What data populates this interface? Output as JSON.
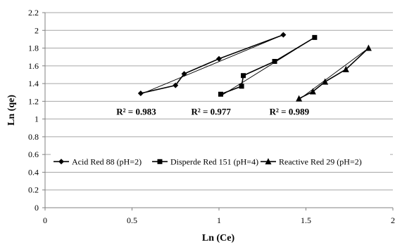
{
  "chart_data": {
    "type": "line",
    "title": "",
    "xlabel": "Ln (Ce)",
    "ylabel": "Ln (qe)",
    "xlim": [
      0,
      2
    ],
    "ylim": [
      0,
      2.2
    ],
    "x_ticks": [
      "0",
      "0.5",
      "1",
      "1.5",
      "2"
    ],
    "y_ticks": [
      "0",
      "0.2",
      "0.4",
      "0.6",
      "0.8",
      "1",
      "1.2",
      "1.4",
      "1.6",
      "1.8",
      "2",
      "2.2"
    ],
    "grid": "horizontal",
    "legend_position": "inside-middle",
    "series": [
      {
        "name": "Acid Red 88 (pH=2)",
        "marker": "diamond",
        "color": "#000000",
        "x": [
          0.55,
          0.75,
          0.8,
          1.0,
          1.37
        ],
        "y": [
          1.29,
          1.38,
          1.51,
          1.68,
          1.95
        ],
        "fit": [
          [
            0.55,
            1.28
          ],
          [
            1.37,
            1.95
          ]
        ],
        "r2_label": "R² = 0.983"
      },
      {
        "name": "Disperde Red 151 (pH=4)",
        "marker": "square",
        "color": "#000000",
        "x": [
          1.01,
          1.13,
          1.14,
          1.32,
          1.55
        ],
        "y": [
          1.28,
          1.37,
          1.49,
          1.65,
          1.92
        ],
        "fit": [
          [
            1.01,
            1.26
          ],
          [
            1.55,
            1.92
          ]
        ],
        "r2_label": "R² = 0.977"
      },
      {
        "name": "Reactive Red 29 (pH=2)",
        "marker": "triangle",
        "color": "#000000",
        "x": [
          1.46,
          1.54,
          1.61,
          1.73,
          1.86
        ],
        "y": [
          1.23,
          1.31,
          1.42,
          1.56,
          1.8
        ],
        "fit": [
          [
            1.46,
            1.22
          ],
          [
            1.86,
            1.8
          ]
        ],
        "r2_label": "R² = 0.989"
      }
    ]
  }
}
